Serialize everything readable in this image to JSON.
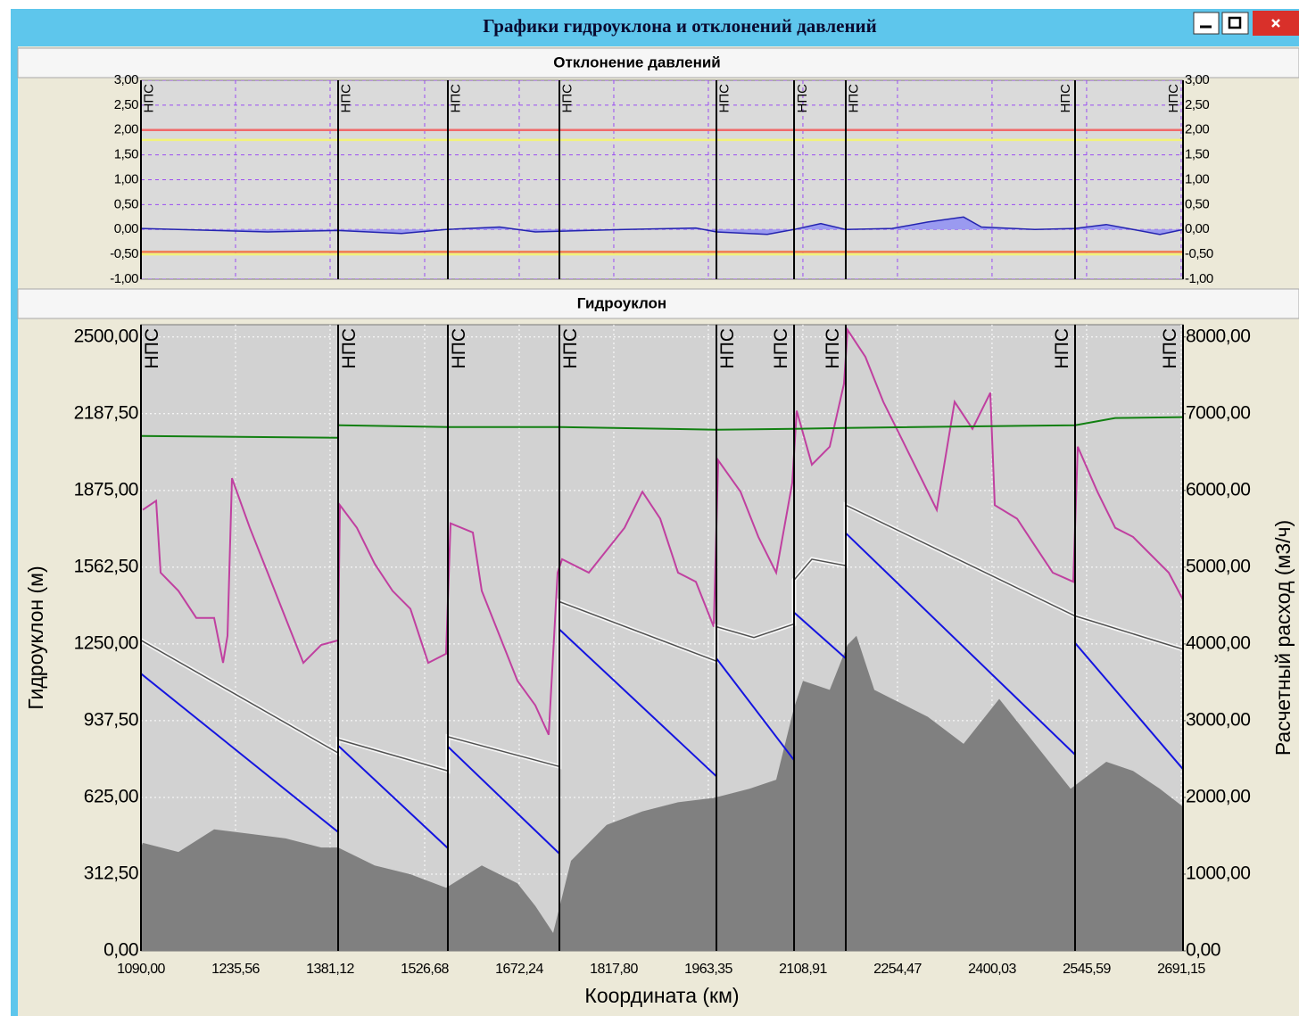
{
  "window": {
    "title": "Графики гидроуклона и отклонений давлений"
  },
  "chart_data": [
    {
      "type": "area",
      "title": "Отклонение давлений",
      "xlim": [
        1090,
        2694
      ],
      "xgrid": [
        1235.56,
        1381.12,
        1526.68,
        1672.24,
        1817.8,
        1963.35,
        2108.91,
        2254.47,
        2400.03,
        2545.59,
        2691.15
      ],
      "ylim": [
        -1,
        3
      ],
      "yticks": [
        {
          "value": -1,
          "label": "-1,00"
        },
        {
          "value": -0.5,
          "label": "-0,50"
        },
        {
          "value": 0,
          "label": "0,00"
        },
        {
          "value": 0.5,
          "label": "0,50"
        },
        {
          "value": 1,
          "label": "1,00"
        },
        {
          "value": 1.5,
          "label": "1,50"
        },
        {
          "value": 2,
          "label": "2,00"
        },
        {
          "value": 2.5,
          "label": "2,50"
        },
        {
          "value": 3,
          "label": "3,00"
        }
      ],
      "grid": true,
      "limits": [
        {
          "value": 2,
          "color": "#f06a6a"
        },
        {
          "value": 1.8,
          "color": "#f2f27a"
        },
        {
          "value": -0.45,
          "color": "#f07a50"
        },
        {
          "value": -0.5,
          "color": "#f2f27a"
        }
      ],
      "stations": [
        {
          "x": 1090,
          "label": "НПС"
        },
        {
          "x": 1393.5,
          "label": "НПС"
        },
        {
          "x": 1562.4,
          "label": "НПС"
        },
        {
          "x": 1734.1,
          "label": "НПС"
        },
        {
          "x": 1975.8,
          "label": "НПС"
        },
        {
          "x": 2095.3,
          "label": "НПС"
        },
        {
          "x": 2174.9,
          "label": "НПС"
        },
        {
          "x": 2527.8,
          "label": "НПС"
        },
        {
          "x": 2694,
          "label": "НПС"
        }
      ],
      "series": [
        {
          "type": "area",
          "color": "#2424b0",
          "fill": "#9a9af0",
          "x": [
            1090,
            1285.0,
            1393.5,
            1491.0,
            1559.7,
            1642.1,
            1697.0,
            1834.3,
            1944.2,
            1975.8,
            2054.1,
            2095.3,
            2136.5,
            2174.9,
            2246.3,
            2301.3,
            2356.2,
            2383.6,
            2466.1,
            2527.8,
            2575.9,
            2658.3,
            2694
          ],
          "values": [
            0.02,
            -0.05,
            -0.02,
            -0.08,
            0.0,
            0.05,
            -0.05,
            0.0,
            0.03,
            -0.05,
            -0.1,
            0.0,
            0.12,
            0.0,
            0.02,
            0.15,
            0.25,
            0.05,
            0.0,
            0.02,
            0.1,
            -0.1,
            0.0
          ]
        }
      ]
    },
    {
      "type": "combo",
      "title": "Гидроуклон",
      "xlabel": "Координата (км)",
      "ylabel": "Гидроуклон (м)",
      "y2label": "Расчетный расход (м3/ч)",
      "xlim": [
        1090,
        2694
      ],
      "xticks": [
        {
          "value": 1090,
          "label": "1090,00"
        },
        {
          "value": 1235.56,
          "label": "1235,56"
        },
        {
          "value": 1381.12,
          "label": "1381,12"
        },
        {
          "value": 1526.68,
          "label": "1526,68"
        },
        {
          "value": 1672.24,
          "label": "1672,24"
        },
        {
          "value": 1817.8,
          "label": "1817,80"
        },
        {
          "value": 1963.35,
          "label": "1963,35"
        },
        {
          "value": 2108.91,
          "label": "2108,91"
        },
        {
          "value": 2254.47,
          "label": "2254,47"
        },
        {
          "value": 2400.03,
          "label": "2400,03"
        },
        {
          "value": 2545.59,
          "label": "2545,59"
        },
        {
          "value": 2691.15,
          "label": "2691,15"
        }
      ],
      "ylim": [
        0,
        2550
      ],
      "yticks": [
        {
          "value": 0,
          "label": "0,00"
        },
        {
          "value": 312.5,
          "label": "312,50"
        },
        {
          "value": 625,
          "label": "625,00"
        },
        {
          "value": 937.5,
          "label": "937,50"
        },
        {
          "value": 1250,
          "label": "1250,00"
        },
        {
          "value": 1562.5,
          "label": "1562,50"
        },
        {
          "value": 1875,
          "label": "1875,00"
        },
        {
          "value": 2187.5,
          "label": "2187,50"
        },
        {
          "value": 2500,
          "label": "2500,00"
        }
      ],
      "y2lim": [
        0,
        8160
      ],
      "y2ticks": [
        {
          "value": 0,
          "label": "0,00"
        },
        {
          "value": 1000,
          "label": "1000,00"
        },
        {
          "value": 2000,
          "label": "2000,00"
        },
        {
          "value": 3000,
          "label": "3000,00"
        },
        {
          "value": 4000,
          "label": "4000,00"
        },
        {
          "value": 5000,
          "label": "5000,00"
        },
        {
          "value": 6000,
          "label": "6000,00"
        },
        {
          "value": 7000,
          "label": "7000,00"
        },
        {
          "value": 8000,
          "label": "8000,00"
        }
      ],
      "grid": true,
      "stations": [
        {
          "x": 1090,
          "label": "НПС"
        },
        {
          "x": 1393.5,
          "label": "НПС"
        },
        {
          "x": 1562.4,
          "label": "НПС"
        },
        {
          "x": 1734.1,
          "label": "НПС"
        },
        {
          "x": 1975.8,
          "label": "НПС"
        },
        {
          "x": 2095.3,
          "label": "НПС"
        },
        {
          "x": 2174.9,
          "label": "НПС"
        },
        {
          "x": 2527.8,
          "label": "НПС"
        },
        {
          "x": 2694,
          "label": "НПС"
        }
      ],
      "series": [
        {
          "type": "area",
          "color": "#808080",
          "x": [
            1090,
            1092.7,
            1147.7,
            1202.6,
            1257.5,
            1312.5,
            1367.4,
            1393.5,
            1449.8,
            1504.7,
            1559.7,
            1614.6,
            1669.5,
            1697.0,
            1724.5,
            1751.9,
            1806.9,
            1861.8,
            1916.7,
            1971.7,
            2026.6,
            2067.8,
            2095.3,
            2109.0,
            2150.2,
            2177.6,
            2191.4,
            2218.9,
            2246.3,
            2301.3,
            2356.2,
            2411.1,
            2466.1,
            2521.0,
            2575.9,
            2617.1,
            2658.3,
            2694.0
          ],
          "values": [
            420,
            440,
            403,
            495,
            477,
            458,
            421,
            421,
            348,
            312,
            257,
            348,
            275,
            183,
            73,
            367,
            513,
            568,
            605,
            623,
            660,
            697,
            990,
            1100,
            1063,
            1246,
            1283,
            1063,
            1026,
            953,
            843,
            1026,
            843,
            660,
            770,
            733,
            660,
            587
          ]
        },
        {
          "type": "line",
          "color": "#c040a0",
          "x": [
            1092.7,
            1113.3,
            1120.2,
            1147.7,
            1175.1,
            1202.6,
            1216.3,
            1223.2,
            1230.1,
            1257.5,
            1285.0,
            1312.5,
            1339.9,
            1367.4,
            1393.5,
            1396.2,
            1422.3,
            1449.8,
            1477.3,
            1504.7,
            1532.2,
            1559.7,
            1566.5,
            1600.9,
            1614.6,
            1642.1,
            1669.5,
            1697.0,
            1717.6,
            1731.3,
            1738.2,
            1779.4,
            1834.3,
            1861.8,
            1889.3,
            1916.7,
            1944.2,
            1971.7,
            1978.5,
            2012.9,
            2040.3,
            2067.8,
            2092.5,
            2099.4,
            2122.7,
            2150.2,
            2172.2,
            2177.7,
            2205.1,
            2232.6,
            2260.0,
            2287.5,
            2315.0,
            2342.4,
            2369.9,
            2397.4,
            2404.2,
            2438.6,
            2466.0,
            2493.5,
            2525.1,
            2532.0,
            2562.2,
            2589.6,
            2617.1,
            2644.6,
            2672.0,
            2694.0
          ],
          "values": [
            1796,
            1833,
            1540,
            1466,
            1356,
            1356,
            1173,
            1283,
            1925,
            1723,
            1540,
            1356,
            1173,
            1246,
            1265,
            1815,
            1723,
            1576,
            1466,
            1393,
            1173,
            1210,
            1741,
            1704,
            1466,
            1283,
            1100,
            1000,
            880,
            1540,
            1595,
            1540,
            1723,
            1870,
            1760,
            1540,
            1503,
            1320,
            1998,
            1870,
            1686,
            1540,
            1906,
            2200,
            1980,
            2053,
            2310,
            2529,
            2419,
            2236,
            2090,
            1943,
            1796,
            2236,
            2126,
            2273,
            1815,
            1760,
            1650,
            1540,
            1503,
            2053,
            1870,
            1723,
            1686,
            1613,
            1540,
            1430
          ]
        },
        {
          "type": "halo-line",
          "color": "#505050",
          "x": [
            1090,
            1393.5,
            1393.5,
            1562.4,
            1562.4,
            1734.1,
            1734.1,
            1975.8,
            1975.8,
            2033.5,
            2095.3,
            2095.3,
            2122.7,
            2174.9,
            2174.9,
            2527.8,
            2694
          ],
          "values": [
            1265,
            806,
            861,
            733,
            872,
            751,
            1422,
            1180,
            1320,
            1276,
            1331,
            1510,
            1595,
            1569,
            1815,
            1364,
            1228
          ]
        },
        {
          "type": "line",
          "color": "#1414e0",
          "x": [
            1090,
            1393.5,
            1393.5,
            1562.4,
            1562.4,
            1734.1,
            1734.1,
            1975.8,
            1975.8,
            2095.3,
            2095.3,
            2174.9,
            2174.9,
            2527.8,
            2527.8,
            2694
          ],
          "values": [
            1129,
            484,
            836,
            418,
            832,
            396,
            1309,
            711,
            1191,
            777,
            1378,
            1191,
            1701,
            799,
            1254,
            740
          ]
        },
        {
          "type": "line",
          "color": "#128012",
          "axis": "y2",
          "x": [
            1090,
            1393.5,
            1393.5,
            1562.4,
            1734.1,
            1975.8,
            2095.3,
            2174.9,
            2527.8,
            2589.6,
            2694
          ],
          "values": [
            6710,
            6686,
            6850,
            6827,
            6827,
            6792,
            6804,
            6815,
            6850,
            6944,
            6956
          ]
        }
      ]
    }
  ]
}
